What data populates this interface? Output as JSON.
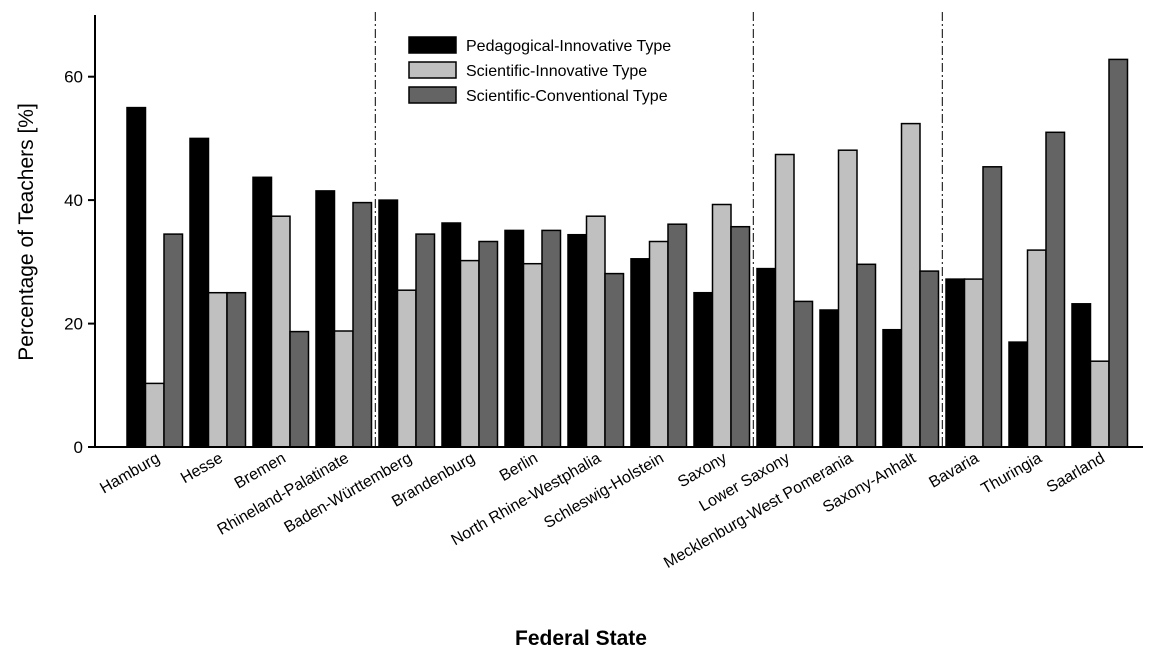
{
  "chart_data": {
    "type": "bar",
    "xlabel": "Federal State",
    "ylabel": "Percentage of Teachers [%]",
    "ylim": [
      0,
      70
    ],
    "yticks": [
      0,
      20,
      40,
      60
    ],
    "grid": false,
    "legend_position": "top-center",
    "categories": [
      "Hamburg",
      "Hesse",
      "Bremen",
      "Rhineland-Palatinate",
      "Baden-Württemberg",
      "Brandenburg",
      "Berlin",
      "North Rhine-Westphalia",
      "Schleswig-Holstein",
      "Saxony",
      "Lower Saxony",
      "Mecklenburg-West Pomerania",
      "Saxony-Anhalt",
      "Bavaria",
      "Thuringia",
      "Saarland"
    ],
    "group_separators_after": [
      3,
      9,
      12
    ],
    "series": [
      {
        "name": "Pedagogical-Innovative Type",
        "color": "#000000",
        "values": [
          55.0,
          50.0,
          43.7,
          41.5,
          40.0,
          36.3,
          35.1,
          34.4,
          30.5,
          25.0,
          28.9,
          22.2,
          19.0,
          27.2,
          17.0,
          23.2
        ]
      },
      {
        "name": "Scientific-Innovative Type",
        "color": "#c0c0c0",
        "values": [
          10.3,
          25.0,
          37.4,
          18.8,
          25.4,
          30.2,
          29.7,
          37.4,
          33.3,
          39.3,
          47.4,
          48.1,
          52.4,
          27.2,
          31.9,
          13.9
        ]
      },
      {
        "name": "Scientific-Conventional Type",
        "color": "#646464",
        "values": [
          34.5,
          25.0,
          18.7,
          39.6,
          34.5,
          33.3,
          35.1,
          28.1,
          36.1,
          35.7,
          23.6,
          29.6,
          28.5,
          45.4,
          51.0,
          62.8
        ]
      }
    ]
  }
}
